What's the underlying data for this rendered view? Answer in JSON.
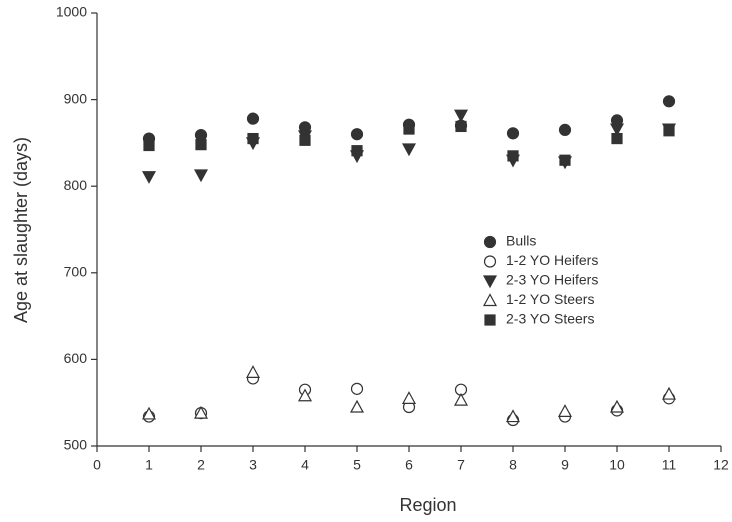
{
  "chart_data": {
    "type": "scatter",
    "xlabel": "Region",
    "ylabel": "Age at slaughter (days)",
    "x": [
      1,
      2,
      3,
      4,
      5,
      6,
      7,
      8,
      9,
      10,
      11
    ],
    "xlim": [
      0,
      12
    ],
    "xticks": [
      0,
      1,
      2,
      3,
      4,
      5,
      6,
      7,
      8,
      9,
      10,
      11,
      12
    ],
    "ylim": [
      500,
      1000
    ],
    "yticks": [
      500,
      600,
      700,
      800,
      900,
      1000
    ],
    "grid": false,
    "legend": "right",
    "series": [
      {
        "name": "Bulls",
        "color": "#333333",
        "marker": "circle",
        "filled": true,
        "values": [
          855,
          859,
          878,
          868,
          860,
          871,
          870,
          861,
          865,
          876,
          898
        ]
      },
      {
        "name": "1-2 YO Heifers",
        "color": "#333333",
        "marker": "circle",
        "filled": false,
        "values": [
          534,
          538,
          578,
          565,
          566,
          545,
          565,
          530,
          534,
          541,
          555
        ]
      },
      {
        "name": "2-3 YO Heifers",
        "color": "#333333",
        "marker": "triangle-down",
        "filled": true,
        "values": [
          811,
          813,
          850,
          858,
          835,
          843,
          882,
          830,
          828,
          866,
          866
        ]
      },
      {
        "name": "1-2 YO Steers",
        "color": "#333333",
        "marker": "triangle-up",
        "filled": false,
        "values": [
          537,
          538,
          585,
          558,
          545,
          555,
          553,
          534,
          540,
          545,
          560
        ]
      },
      {
        "name": "2-3 YO Steers",
        "color": "#333333",
        "marker": "square",
        "filled": true,
        "values": [
          847,
          848,
          855,
          853,
          841,
          866,
          869,
          835,
          830,
          855,
          864
        ]
      }
    ]
  }
}
